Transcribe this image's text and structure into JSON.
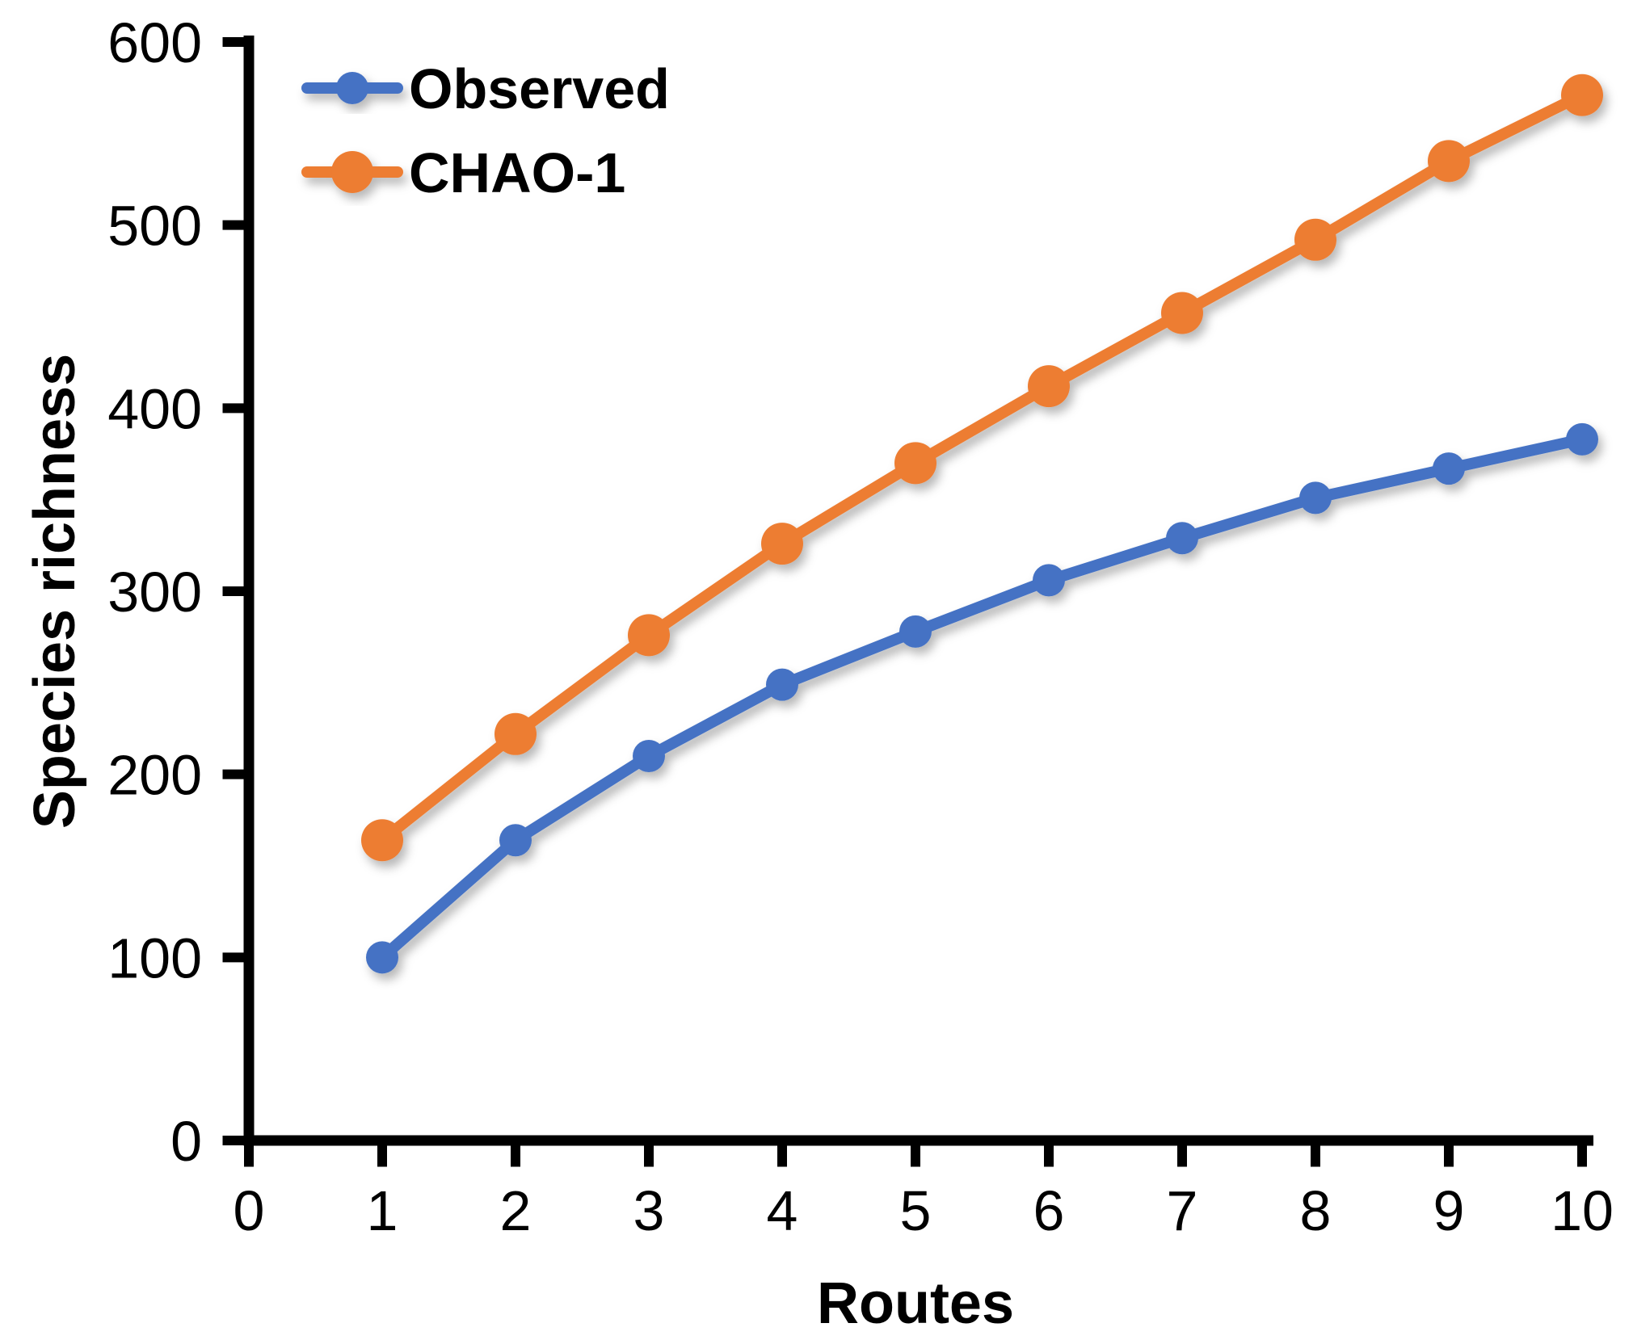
{
  "figure": {
    "background": "#FFFFFF",
    "axis_color": "#000000",
    "text_color": "#000000"
  },
  "chart_data": {
    "type": "line",
    "title": "",
    "xlabel": "Routes",
    "ylabel": "Species richness",
    "x": [
      1,
      2,
      3,
      4,
      5,
      6,
      7,
      8,
      9,
      10
    ],
    "series": [
      {
        "name": "Observed",
        "color": "#4472C4",
        "marker": "circle",
        "marker_radius": 20,
        "values": [
          100,
          164,
          210,
          249,
          278,
          306,
          329,
          351,
          367,
          383
        ]
      },
      {
        "name": "CHAO-1",
        "color": "#ED7D31",
        "marker": "circle",
        "marker_radius": 26,
        "values": [
          164,
          222,
          276,
          326,
          370,
          412,
          452,
          492,
          535,
          571
        ]
      }
    ],
    "xlim": [
      0,
      10
    ],
    "ylim": [
      0,
      600
    ],
    "x_ticks": [
      0,
      1,
      2,
      3,
      4,
      5,
      6,
      7,
      8,
      9,
      10
    ],
    "y_ticks": [
      0,
      100,
      200,
      300,
      400,
      500,
      600
    ],
    "grid": false,
    "legend_position": "top-left-inside"
  }
}
